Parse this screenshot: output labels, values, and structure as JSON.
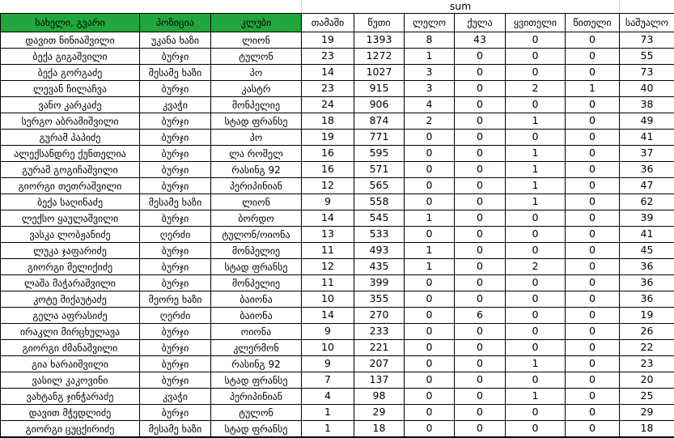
{
  "title": "sum",
  "colors": {
    "header_green": "#21a73e",
    "grid_line": "#000000",
    "sheet_gridline_gray": "#d0d0d0"
  },
  "table": {
    "green_headers": [
      "სახელი, გვარი",
      "პოზიცია",
      "კლუბი"
    ],
    "stat_headers": [
      "თამაში",
      "წუთი",
      "ლელო",
      "ქულა",
      "ყვითელი",
      "წითელი",
      "საშუალო"
    ],
    "column_keys": [
      "name",
      "position",
      "club",
      "games",
      "minutes",
      "tries",
      "points",
      "yellow-cards",
      "red-cards",
      "average"
    ],
    "rows": [
      {
        "cells": [
          "დავით ნინიაშვილი",
          "უკანა ხაზი",
          "ლიონ",
          "19",
          "1393",
          "8",
          "43",
          "0",
          "0",
          "73"
        ]
      },
      {
        "cells": [
          "ბექა გიგაშვილი",
          "ბურჯი",
          "ტულონ",
          "23",
          "1272",
          "1",
          "0",
          "0",
          "0",
          "55"
        ]
      },
      {
        "cells": [
          "ბექა გორგაძე",
          "მესამე ხაზი",
          "პო",
          "14",
          "1027",
          "3",
          "0",
          "0",
          "0",
          "73"
        ]
      },
      {
        "cells": [
          "ლევან ჩილაჩვა",
          "ბურჯი",
          "კასტრ",
          "23",
          "915",
          "3",
          "0",
          "2",
          "1",
          "40"
        ]
      },
      {
        "cells": [
          "ვანო კარკაძე",
          "კვაჭი",
          "მონპელიე",
          "24",
          "906",
          "4",
          "0",
          "0",
          "0",
          "38"
        ]
      },
      {
        "cells": [
          "სერგო აბრამიშვილი",
          "ბურჯი",
          "სტად ფრანსე",
          "18",
          "874",
          "2",
          "0",
          "1",
          "0",
          "49"
        ]
      },
      {
        "cells": [
          "გურამ პაპიძე",
          "ბურჯი",
          "პო",
          "19",
          "771",
          "0",
          "0",
          "0",
          "0",
          "41"
        ]
      },
      {
        "cells": [
          "ალექსანდრე ქუნთელია",
          "ბურჯი",
          "ლა როშელ",
          "16",
          "595",
          "0",
          "0",
          "1",
          "0",
          "37"
        ]
      },
      {
        "cells": [
          "გურამ გოგიჩაშვილი",
          "ბურჯი",
          "რასინგ 92",
          "16",
          "571",
          "0",
          "0",
          "1",
          "0",
          "36"
        ]
      },
      {
        "cells": [
          "გიორგი თეთრაშვილი",
          "ბურჯი",
          "პერიპინიან",
          "12",
          "565",
          "0",
          "0",
          "1",
          "0",
          "47"
        ]
      },
      {
        "cells": [
          "ბექა საღინაძე",
          "მესამე ხაზი",
          "ლიონ",
          "9",
          "558",
          "0",
          "0",
          "1",
          "0",
          "62"
        ]
      },
      {
        "cells": [
          "ლექსო ყაულაშვილი",
          "ბურჯი",
          "ბორდო",
          "14",
          "545",
          "1",
          "0",
          "0",
          "0",
          "39"
        ]
      },
      {
        "cells": [
          "ვასკა ლობჟანიძე",
          "ღერძი",
          "ტულონ/ოიონა",
          "13",
          "533",
          "0",
          "0",
          "0",
          "0",
          "41"
        ]
      },
      {
        "cells": [
          "ლუკა ჯაფარიძე",
          "ბურჯი",
          "მონპელიე",
          "11",
          "493",
          "1",
          "0",
          "0",
          "0",
          "45"
        ]
      },
      {
        "cells": [
          "გიორგი მელიქიძე",
          "ბურჯი",
          "სტად ფრანსე",
          "12",
          "435",
          "1",
          "0",
          "2",
          "0",
          "36"
        ]
      },
      {
        "cells": [
          "ლაშა მაჭარაშვილი",
          "ბურჯი",
          "მონპელიე",
          "11",
          "399",
          "0",
          "0",
          "0",
          "0",
          "36"
        ]
      },
      {
        "cells": [
          "კოტე მიქაუტაძე",
          "მეორე ხაზი",
          "ბაიონა",
          "10",
          "355",
          "0",
          "0",
          "0",
          "0",
          "36"
        ]
      },
      {
        "cells": [
          "გელა აფრასიძე",
          "ღერძი",
          "ბაიონა",
          "14",
          "270",
          "0",
          "6",
          "0",
          "0",
          "19"
        ]
      },
      {
        "cells": [
          "ირაკლი მირცხულავა",
          "ბურჯი",
          "ოიონა",
          "9",
          "233",
          "0",
          "0",
          "0",
          "0",
          "26"
        ]
      },
      {
        "cells": [
          "გიორგი ძმანაშვილი",
          "ბურჯი",
          "კლერმონ",
          "10",
          "221",
          "0",
          "0",
          "0",
          "0",
          "22"
        ]
      },
      {
        "cells": [
          "გია ხარაიშვილი",
          "ბურჯი",
          "რასინგ 92",
          "9",
          "207",
          "0",
          "0",
          "1",
          "0",
          "23"
        ]
      },
      {
        "cells": [
          "ვასილ კაკოვინი",
          "ბურჯი",
          "სტად ფრანსე",
          "7",
          "137",
          "0",
          "0",
          "0",
          "0",
          "20"
        ]
      },
      {
        "cells": [
          "ვახტანგ ჯინჭარაძე",
          "კვაჭი",
          "პერიპინიან",
          "4",
          "98",
          "0",
          "0",
          "1",
          "0",
          "25"
        ]
      },
      {
        "cells": [
          "დავით მჭედლიძე",
          "ბურჯი",
          "ტულონ",
          "1",
          "29",
          "0",
          "0",
          "0",
          "0",
          "29"
        ]
      },
      {
        "cells": [
          "გიორგი ცუცქირიძე",
          "მესამე ხაზი",
          "სტად ფრანსე",
          "1",
          "18",
          "0",
          "0",
          "0",
          "0",
          "18"
        ]
      }
    ]
  }
}
